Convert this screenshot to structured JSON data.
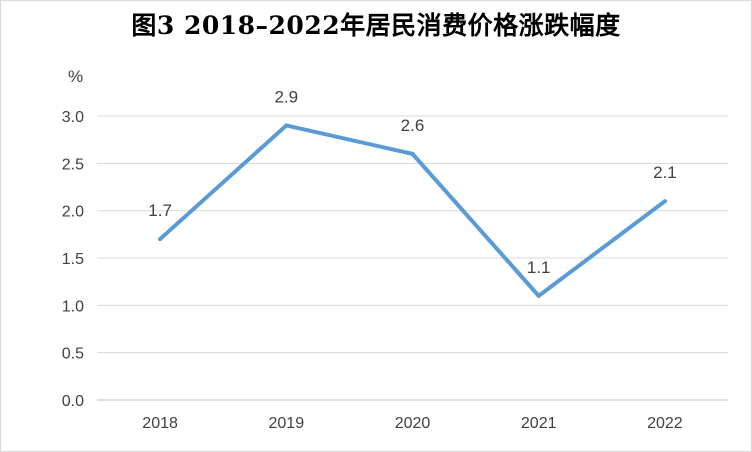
{
  "chart_data": {
    "type": "line",
    "title": "图3  2018–2022年居民消费价格涨跌幅度",
    "ylabel": "%",
    "categories": [
      "2018",
      "2019",
      "2020",
      "2021",
      "2022"
    ],
    "series": [
      {
        "values": [
          1.7,
          2.9,
          2.6,
          1.1,
          2.1
        ],
        "color": "#5b9bd5"
      }
    ],
    "data_labels": [
      "1.7",
      "2.9",
      "2.6",
      "1.1",
      "2.1"
    ],
    "y_ticks": [
      "0.0",
      "0.5",
      "1.0",
      "1.5",
      "2.0",
      "2.5",
      "3.0"
    ],
    "ylim": [
      0,
      3.0
    ],
    "grid": true,
    "legend": "none"
  }
}
